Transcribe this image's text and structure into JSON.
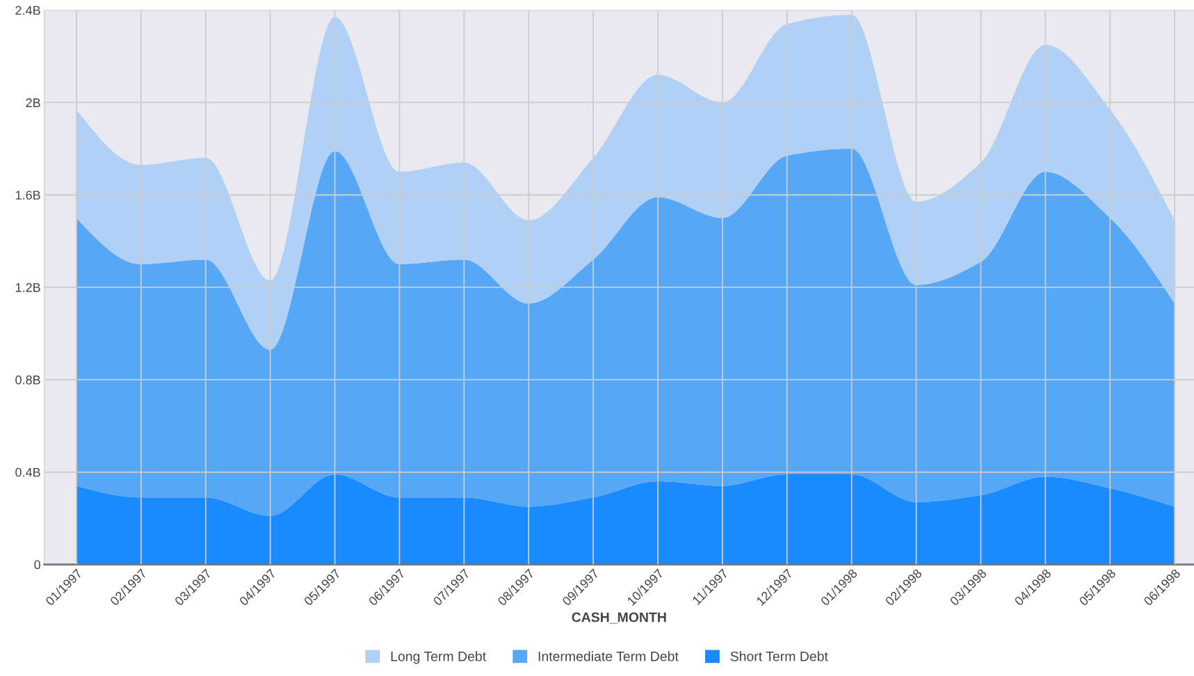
{
  "chart_data": {
    "type": "area",
    "stacked": true,
    "xlabel": "CASH_MONTH",
    "categories": [
      "01/1997",
      "02/1997",
      "03/1997",
      "04/1997",
      "05/1997",
      "06/1997",
      "07/1997",
      "08/1997",
      "09/1997",
      "10/1997",
      "11/1997",
      "12/1997",
      "01/1998",
      "02/1998",
      "03/1998",
      "04/1998",
      "05/1998",
      "06/1998"
    ],
    "series": [
      {
        "name": "Short Term Debt",
        "color": "#1a8aff",
        "values": [
          0.34,
          0.29,
          0.29,
          0.21,
          0.39,
          0.29,
          0.29,
          0.25,
          0.29,
          0.36,
          0.34,
          0.39,
          0.39,
          0.27,
          0.3,
          0.38,
          0.33,
          0.25
        ]
      },
      {
        "name": "Intermediate Term Debt",
        "color": "#57a7f7",
        "values": [
          1.16,
          1.01,
          1.03,
          0.72,
          1.4,
          1.01,
          1.03,
          0.88,
          1.03,
          1.23,
          1.16,
          1.38,
          1.41,
          0.94,
          1.01,
          1.32,
          1.17,
          0.88
        ]
      },
      {
        "name": "Long Term Debt",
        "color": "#b0d0f5",
        "values": [
          0.47,
          0.43,
          0.44,
          0.3,
          0.58,
          0.4,
          0.42,
          0.36,
          0.44,
          0.53,
          0.5,
          0.57,
          0.58,
          0.36,
          0.43,
          0.55,
          0.47,
          0.36
        ]
      }
    ],
    "ylim": [
      0,
      2.4
    ],
    "yticks": [
      0,
      {
        "value": 0.4,
        "label": "0.4B"
      },
      {
        "value": 0.8,
        "label": "0.8B"
      },
      {
        "value": 1.2,
        "label": "1.2B"
      },
      {
        "value": 1.6,
        "label": "1.6B"
      },
      {
        "value": 2,
        "label": "2B"
      },
      {
        "value": 2.4,
        "label": "2.4B"
      }
    ],
    "grid": true,
    "legend": "bottom"
  }
}
